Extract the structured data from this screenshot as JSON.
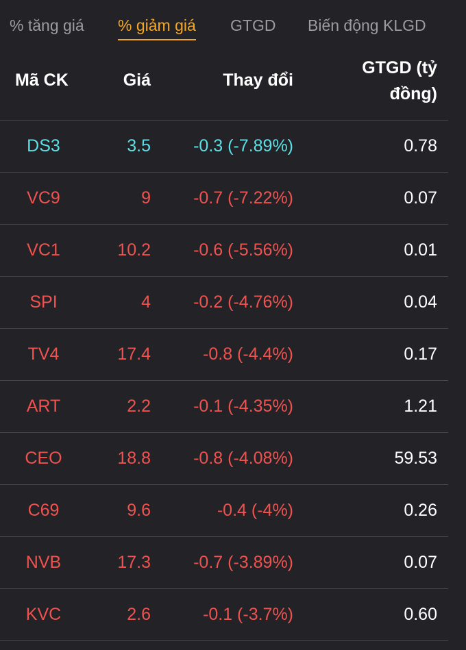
{
  "tabs": [
    {
      "label": "% tăng giá",
      "active": false
    },
    {
      "label": "% giảm giá",
      "active": true
    },
    {
      "label": "GTGD",
      "active": false
    },
    {
      "label": "Biến động KLGD",
      "active": false
    }
  ],
  "columns": {
    "code": "Mã CK",
    "price": "Giá",
    "change": "Thay đổi",
    "value_line1": "GTGD (tỷ",
    "value_line2": "đồng)"
  },
  "colors": {
    "reference": "#5ae0e6",
    "decrease": "#f0524f",
    "active_tab": "#f5a623"
  },
  "rows": [
    {
      "code": "DS3",
      "price": "3.5",
      "change": "-0.3 (-7.89%)",
      "value": "0.78",
      "status": "ref"
    },
    {
      "code": "VC9",
      "price": "9",
      "change": "-0.7 (-7.22%)",
      "value": "0.07",
      "status": "down"
    },
    {
      "code": "VC1",
      "price": "10.2",
      "change": "-0.6 (-5.56%)",
      "value": "0.01",
      "status": "down"
    },
    {
      "code": "SPI",
      "price": "4",
      "change": "-0.2 (-4.76%)",
      "value": "0.04",
      "status": "down"
    },
    {
      "code": "TV4",
      "price": "17.4",
      "change": "-0.8 (-4.4%)",
      "value": "0.17",
      "status": "down"
    },
    {
      "code": "ART",
      "price": "2.2",
      "change": "-0.1 (-4.35%)",
      "value": "1.21",
      "status": "down"
    },
    {
      "code": "CEO",
      "price": "18.8",
      "change": "-0.8 (-4.08%)",
      "value": "59.53",
      "status": "down"
    },
    {
      "code": "C69",
      "price": "9.6",
      "change": "-0.4 (-4%)",
      "value": "0.26",
      "status": "down"
    },
    {
      "code": "NVB",
      "price": "17.3",
      "change": "-0.7 (-3.89%)",
      "value": "0.07",
      "status": "down"
    },
    {
      "code": "KVC",
      "price": "2.6",
      "change": "-0.1 (-3.7%)",
      "value": "0.60",
      "status": "down"
    }
  ]
}
